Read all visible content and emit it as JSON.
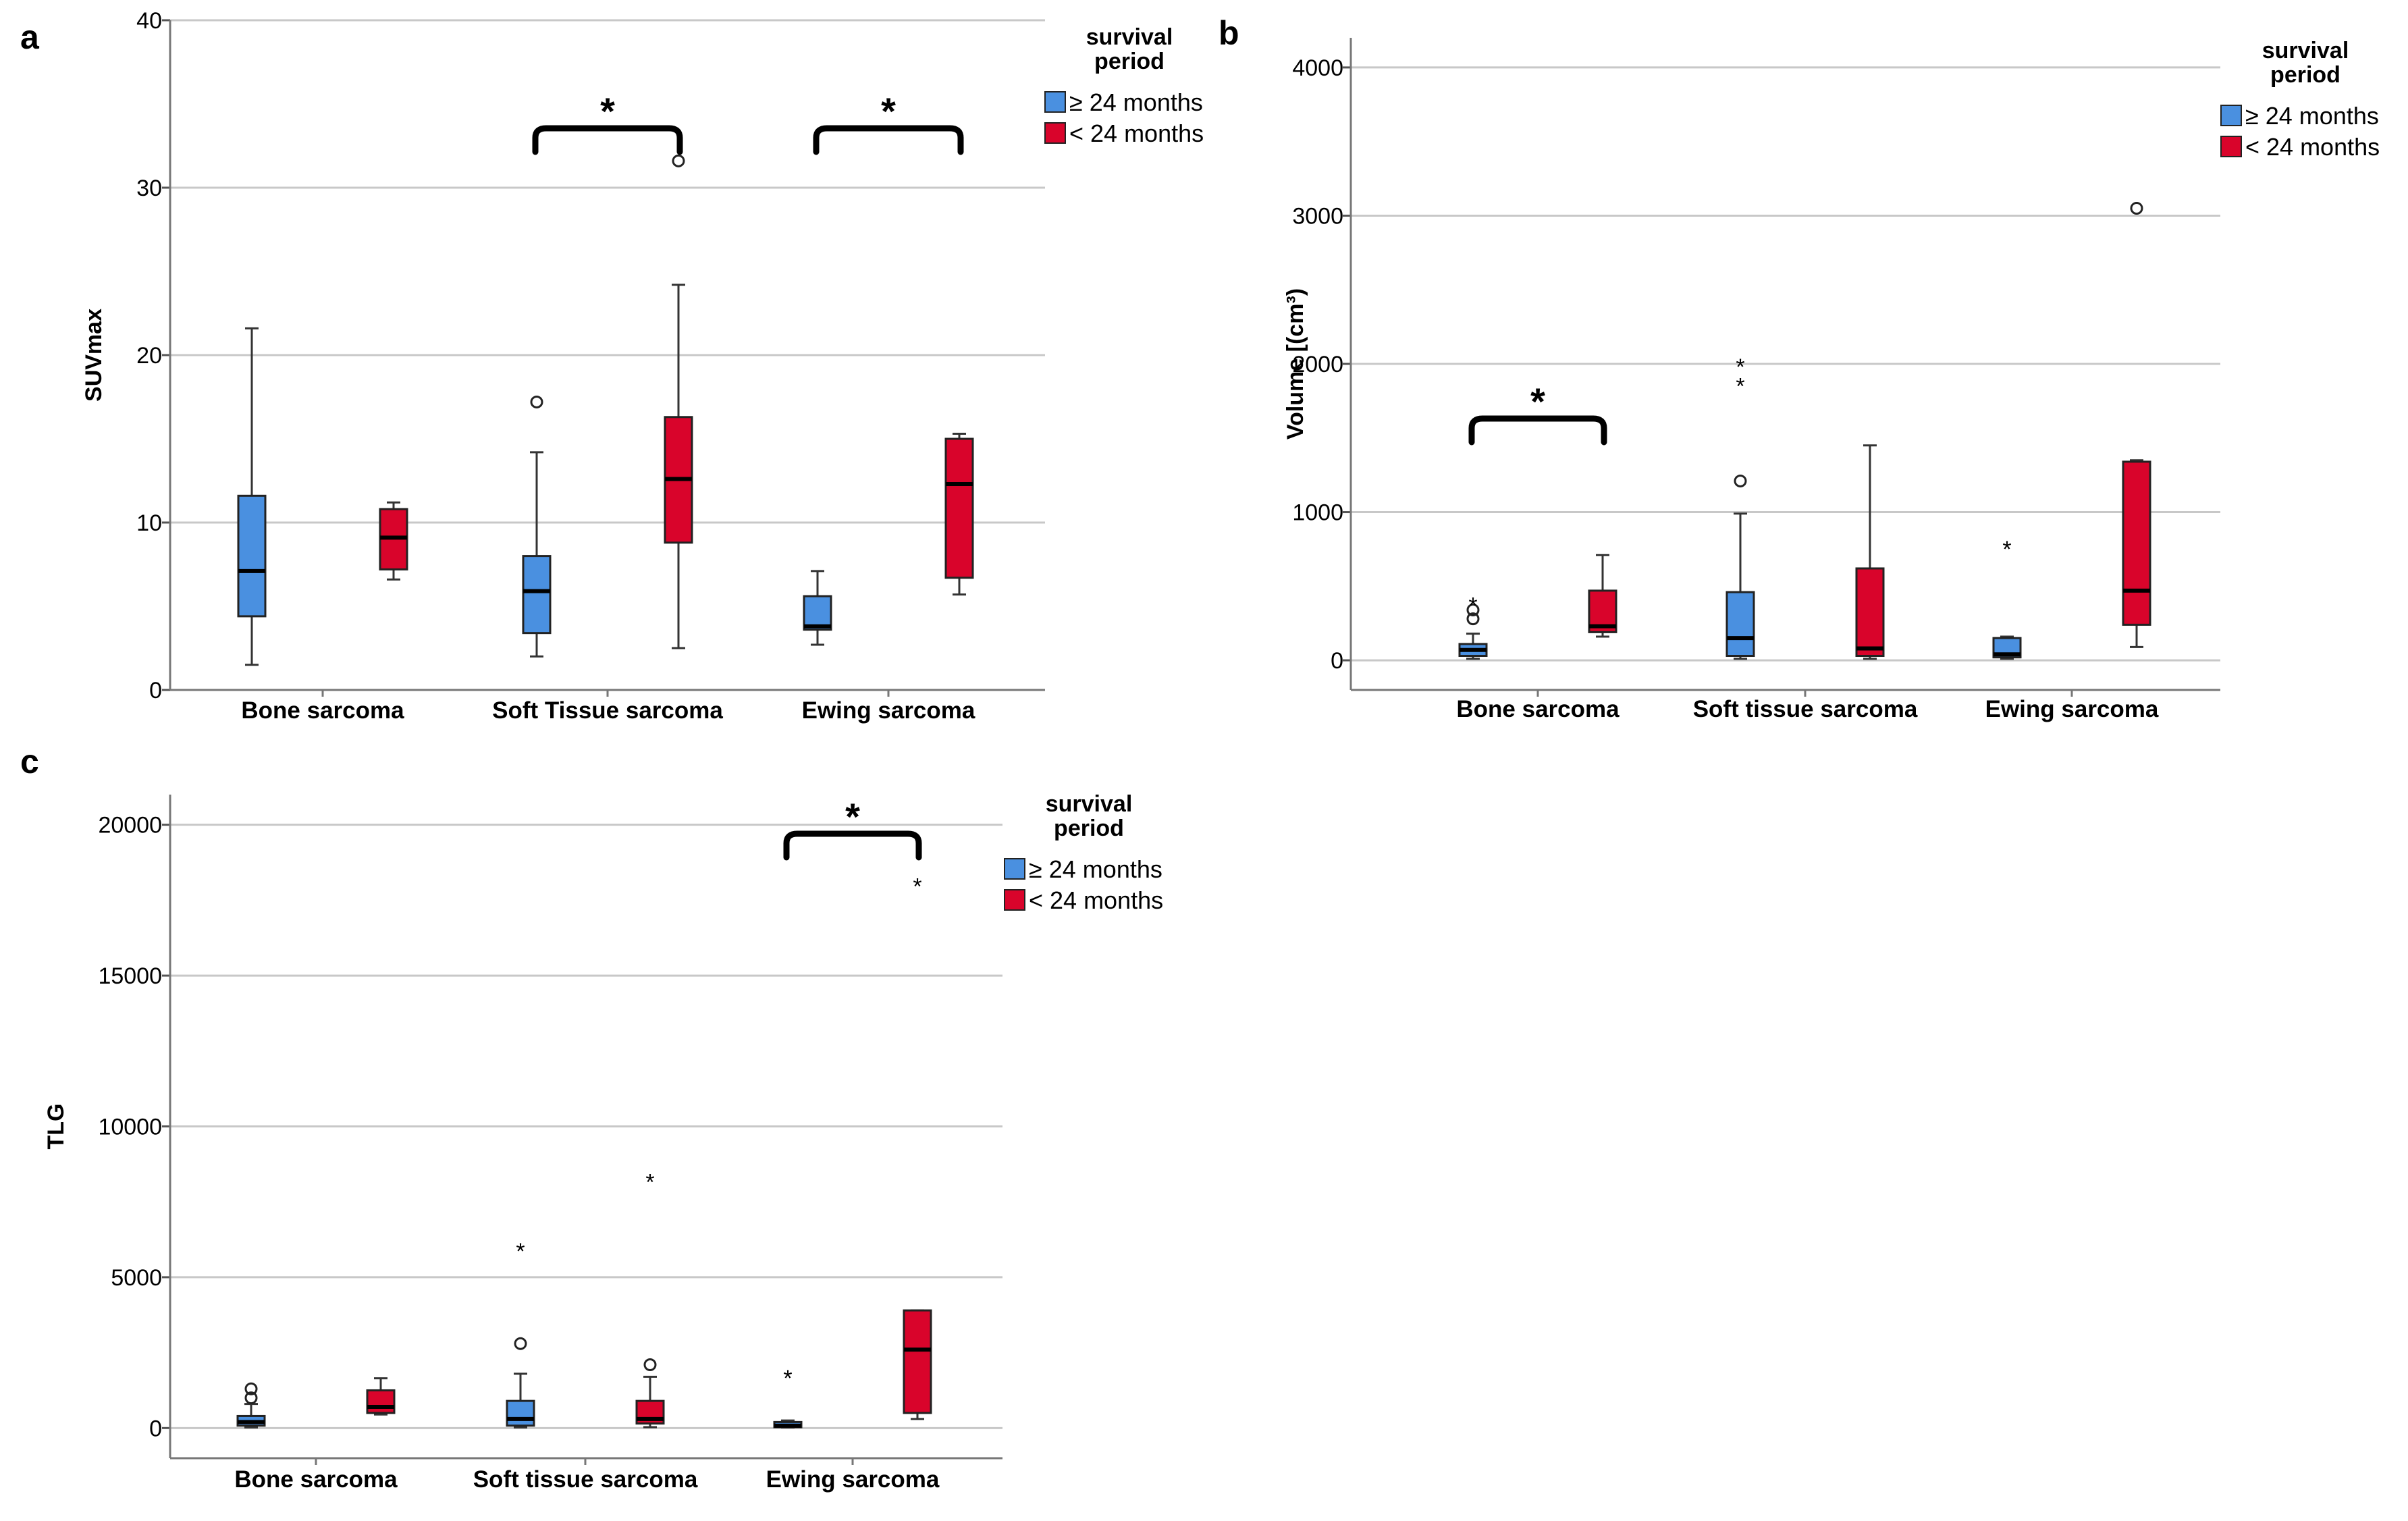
{
  "legend": {
    "title_line1": "survival",
    "title_line2": "period",
    "items": [
      {
        "label": "≥ 24 months",
        "color": "#4a90e0"
      },
      {
        "label": "< 24 months",
        "color": "#d9042b"
      }
    ]
  },
  "significance_marker": "*",
  "outlier_extreme_symbol": "*",
  "chart_data": [
    {
      "type": "box",
      "panel": "a",
      "ylabel": "SUVmax",
      "ylim": [
        0,
        40
      ],
      "yticks": [
        0,
        10,
        20,
        30,
        40
      ],
      "categories": [
        "Bone sarcoma",
        "Soft Tissue sarcoma",
        "Ewing sarcoma"
      ],
      "groups": [
        "≥ 24 months",
        "< 24 months"
      ],
      "boxes": [
        {
          "category": 0,
          "group": 0,
          "min": 1.5,
          "q1": 4.4,
          "median": 7.1,
          "q3": 11.6,
          "max": 21.6,
          "outliers": [],
          "extremes": []
        },
        {
          "category": 0,
          "group": 1,
          "min": 6.6,
          "q1": 7.2,
          "median": 9.1,
          "q3": 10.8,
          "max": 11.2,
          "outliers": [],
          "extremes": []
        },
        {
          "category": 1,
          "group": 0,
          "min": 2.0,
          "q1": 3.4,
          "median": 5.9,
          "q3": 8.0,
          "max": 14.2,
          "outliers": [
            17.2
          ],
          "extremes": []
        },
        {
          "category": 1,
          "group": 1,
          "min": 2.5,
          "q1": 8.8,
          "median": 12.6,
          "q3": 16.3,
          "max": 24.2,
          "outliers": [
            31.6
          ],
          "extremes": []
        },
        {
          "category": 2,
          "group": 0,
          "min": 2.7,
          "q1": 3.6,
          "median": 3.8,
          "q3": 5.6,
          "max": 7.1,
          "outliers": [],
          "extremes": []
        },
        {
          "category": 2,
          "group": 1,
          "min": 5.7,
          "q1": 6.7,
          "median": 12.3,
          "q3": 15.0,
          "max": 15.3,
          "outliers": [],
          "extremes": []
        }
      ],
      "significance": [
        1,
        2
      ]
    },
    {
      "type": "box",
      "panel": "b",
      "ylabel": "Volume [(cm³)",
      "ylim": [
        -200,
        4200
      ],
      "yticks": [
        0,
        1000,
        2000,
        3000,
        4000
      ],
      "categories": [
        "Bone sarcoma",
        "Soft tissue sarcoma",
        "Ewing sarcoma"
      ],
      "groups": [
        "≥ 24 months",
        "< 24 months"
      ],
      "boxes": [
        {
          "category": 0,
          "group": 0,
          "min": 10,
          "q1": 30,
          "median": 70,
          "q3": 110,
          "max": 180,
          "outliers": [
            280,
            340
          ],
          "extremes": [
            400
          ]
        },
        {
          "category": 0,
          "group": 1,
          "min": 160,
          "q1": 190,
          "median": 230,
          "q3": 470,
          "max": 710,
          "outliers": [],
          "extremes": []
        },
        {
          "category": 1,
          "group": 0,
          "min": 10,
          "q1": 30,
          "median": 150,
          "q3": 460,
          "max": 990,
          "outliers": [
            1210
          ],
          "extremes": [
            1880,
            2010
          ]
        },
        {
          "category": 1,
          "group": 1,
          "min": 10,
          "q1": 30,
          "median": 80,
          "q3": 620,
          "max": 1450,
          "outliers": [],
          "extremes": []
        },
        {
          "category": 2,
          "group": 0,
          "min": 10,
          "q1": 20,
          "median": 40,
          "q3": 150,
          "max": 160,
          "outliers": [],
          "extremes": [
            780
          ]
        },
        {
          "category": 2,
          "group": 1,
          "min": 90,
          "q1": 240,
          "median": 470,
          "q3": 1340,
          "max": 1350,
          "outliers": [
            3050
          ],
          "extremes": []
        }
      ],
      "significance": [
        0
      ]
    },
    {
      "type": "box",
      "panel": "c",
      "ylabel": "TLG",
      "ylim": [
        -1000,
        21000
      ],
      "yticks": [
        0,
        5000,
        10000,
        15000,
        20000
      ],
      "categories": [
        "Bone sarcoma",
        "Soft tissue sarcoma",
        "Ewing sarcoma"
      ],
      "groups": [
        "≥ 24 months",
        "< 24 months"
      ],
      "boxes": [
        {
          "category": 0,
          "group": 0,
          "min": 20,
          "q1": 80,
          "median": 200,
          "q3": 400,
          "max": 800,
          "outliers": [
            1000,
            1300
          ],
          "extremes": []
        },
        {
          "category": 0,
          "group": 1,
          "min": 450,
          "q1": 500,
          "median": 700,
          "q3": 1250,
          "max": 1650,
          "outliers": [],
          "extremes": []
        },
        {
          "category": 1,
          "group": 0,
          "min": 20,
          "q1": 80,
          "median": 300,
          "q3": 900,
          "max": 1800,
          "outliers": [
            2800
          ],
          "extremes": [
            6000
          ]
        },
        {
          "category": 1,
          "group": 1,
          "min": 30,
          "q1": 150,
          "median": 300,
          "q3": 900,
          "max": 1700,
          "outliers": [
            2100
          ],
          "extremes": [
            8300
          ]
        },
        {
          "category": 2,
          "group": 0,
          "min": 20,
          "q1": 30,
          "median": 80,
          "q3": 200,
          "max": 250,
          "outliers": [],
          "extremes": [
            1800
          ]
        },
        {
          "category": 2,
          "group": 1,
          "min": 300,
          "q1": 500,
          "median": 2600,
          "q3": 3900,
          "max": 3900,
          "outliers": [],
          "extremes": [
            18100
          ]
        }
      ],
      "significance": [
        2
      ]
    }
  ]
}
